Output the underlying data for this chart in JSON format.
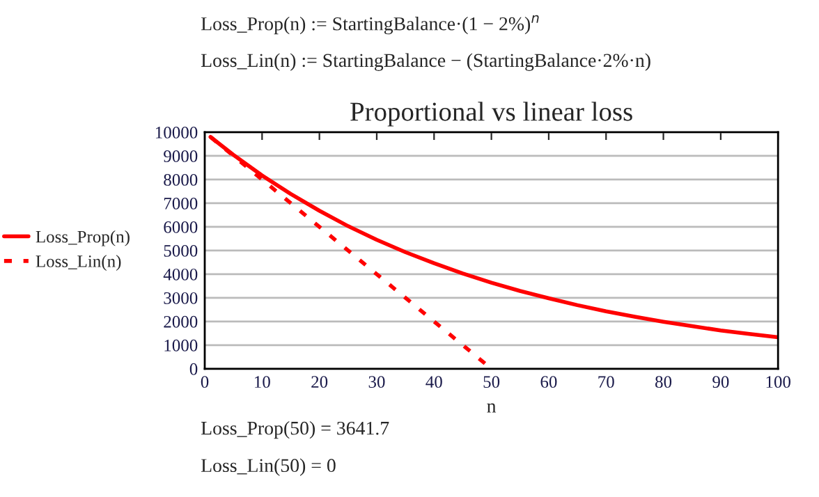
{
  "chart_data": {
    "type": "line",
    "title": "Proportional vs linear loss",
    "xlabel": "n",
    "annotations": [
      "Loss_Prop(n) := StartingBalance·(1 − 2%)$^{n}$",
      "Loss_Lin(n) := StartingBalance − (StartingBalance·2%·n)",
      "Loss_Prop(50) = 3641.7",
      "Loss_Lin(50) = 0"
    ],
    "series": [
      {
        "name": "Loss_Prop(n)",
        "color": "#ff0000",
        "line_style": "solid",
        "x": [
          1,
          5,
          10,
          15,
          20,
          25,
          30,
          35,
          40,
          45,
          50,
          55,
          60,
          65,
          70,
          75,
          80,
          85,
          90,
          95,
          100
        ],
        "values": [
          9800,
          9040,
          8170,
          7390,
          6680,
          6030,
          5450,
          4930,
          4460,
          4030,
          3640,
          3290,
          2980,
          2690,
          2430,
          2200,
          1990,
          1800,
          1620,
          1470,
          1330
        ]
      },
      {
        "name": "Loss_Lin(n)",
        "color": "#ff0000",
        "line_style": "dashed",
        "x": [
          1,
          50
        ],
        "values": [
          9800,
          0
        ]
      }
    ],
    "xlim": [
      0,
      100
    ],
    "xticks": [
      0,
      10,
      20,
      30,
      40,
      50,
      60,
      70,
      80,
      90,
      100
    ],
    "ylim": [
      0,
      10000
    ],
    "yticks": [
      0,
      1000,
      2000,
      3000,
      4000,
      5000,
      6000,
      7000,
      8000,
      9000,
      10000
    ],
    "grid": "y",
    "legend": "left"
  }
}
